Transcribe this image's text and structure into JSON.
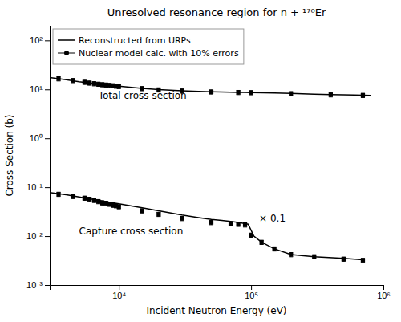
{
  "chart_data": {
    "type": "line",
    "title": "Unresolved resonance region for n + ¹⁷⁰Er",
    "x_label": "Incident Neutron Energy (eV)",
    "y_label": "Cross Section (b)",
    "log": true,
    "grid": false,
    "legend": "upper left",
    "xlim": [
      3000,
      1000000
    ],
    "ylim": [
      0.001,
      200
    ],
    "xticks": [
      {
        "value": 10000,
        "label": "10⁴"
      },
      {
        "value": 100000,
        "label": "10⁵"
      },
      {
        "value": 1000000,
        "label": "10⁶"
      }
    ],
    "yticks": [
      {
        "value": 0.001,
        "label": "10⁻³"
      },
      {
        "value": 0.01,
        "label": "10⁻²"
      },
      {
        "value": 0.1,
        "label": "10⁻¹"
      },
      {
        "value": 1,
        "label": "10⁰"
      },
      {
        "value": 10,
        "label": "10¹"
      },
      {
        "value": 100,
        "label": "10²"
      }
    ],
    "series": [
      {
        "name": "Reconstructed from URPs",
        "type": "line",
        "color": "black",
        "x": [
          3000,
          4000,
          5000,
          6000,
          7000,
          8000,
          9000,
          10000,
          15000,
          20000,
          30000,
          40000,
          50000,
          60000,
          70000,
          80000,
          90000,
          100000,
          150000,
          200000,
          300000,
          400000,
          500000,
          600000,
          700000,
          800000
        ],
        "values": [
          17.5,
          15.8,
          14.3,
          13.5,
          12.9,
          12.4,
          12.0,
          11.6,
          10.5,
          9.9,
          9.4,
          9.1,
          8.95,
          8.85,
          8.78,
          8.72,
          8.67,
          8.62,
          8.42,
          8.25,
          7.98,
          7.82,
          7.72,
          7.65,
          7.6,
          7.55
        ]
      },
      {
        "name": "Nuclear model calc. with 10% errors",
        "type": "scatter",
        "marker": "square",
        "color": "black",
        "x": [
          3500,
          4500,
          5500,
          6000,
          6500,
          7000,
          7500,
          8000,
          8500,
          9000,
          9500,
          10000,
          15000,
          20000,
          30000,
          50000,
          80000,
          100000,
          200000,
          400000,
          700000
        ],
        "values": [
          16.5,
          15.2,
          14.0,
          13.5,
          13.1,
          12.8,
          12.5,
          12.3,
          12.1,
          11.9,
          11.7,
          11.5,
          10.4,
          9.8,
          9.3,
          8.9,
          8.68,
          8.6,
          8.2,
          7.78,
          7.57
        ],
        "errors": [
          1.65,
          1.52,
          1.4,
          1.35,
          1.31,
          1.28,
          1.25,
          1.23,
          1.21,
          1.19,
          1.17,
          1.15,
          1.04,
          0.98,
          0.93,
          0.89,
          0.868,
          0.86,
          0.82,
          0.778,
          0.757
        ]
      },
      {
        "name": "Reconstructed from URPs",
        "type": "line",
        "color": "black",
        "x": [
          3000,
          4000,
          5000,
          6000,
          7000,
          8000,
          9000,
          10000,
          15000,
          20000,
          30000,
          40000,
          50000,
          60000,
          70000,
          80000,
          90000,
          95000,
          105000,
          120000,
          150000,
          200000,
          300000,
          500000,
          700000
        ],
        "values": [
          0.078,
          0.07,
          0.063,
          0.058,
          0.054,
          0.051,
          0.048,
          0.046,
          0.038,
          0.033,
          0.027,
          0.024,
          0.022,
          0.021,
          0.02,
          0.019,
          0.018,
          0.0175,
          0.01,
          0.0075,
          0.0055,
          0.0042,
          0.0038,
          0.0035,
          0.0033
        ]
      },
      {
        "name": "Nuclear model calc. with 10% errors",
        "type": "scatter",
        "marker": "square",
        "color": "black",
        "x": [
          3500,
          4500,
          5500,
          6000,
          6500,
          7000,
          7500,
          8000,
          8500,
          9000,
          9500,
          10000,
          15000,
          20000,
          30000,
          50000,
          70000,
          80000,
          90000,
          100000,
          120000,
          150000,
          200000,
          300000,
          500000,
          700000
        ],
        "values": [
          0.072,
          0.065,
          0.06,
          0.057,
          0.054,
          0.051,
          0.048,
          0.047,
          0.045,
          0.043,
          0.042,
          0.04,
          0.033,
          0.028,
          0.023,
          0.019,
          0.018,
          0.0175,
          0.017,
          0.0105,
          0.0075,
          0.0055,
          0.0042,
          0.0038,
          0.0034,
          0.0032
        ],
        "errors": [
          0.0072,
          0.0065,
          0.006,
          0.0057,
          0.0054,
          0.0051,
          0.0048,
          0.0047,
          0.0045,
          0.0043,
          0.0042,
          0.004,
          0.0033,
          0.0028,
          0.0023,
          0.0019,
          0.0018,
          0.00175,
          0.0017,
          0.00105,
          0.00075,
          0.00055,
          0.00042,
          0.00038,
          0.00034,
          0.00032
        ]
      }
    ],
    "annotations": [
      {
        "text": "Total cross section",
        "x": 7000,
        "y": 6.5
      },
      {
        "text": "Capture cross section",
        "x": 5000,
        "y": 0.011
      },
      {
        "text": "× 0.1",
        "x": 115000,
        "y": 0.02
      }
    ]
  }
}
